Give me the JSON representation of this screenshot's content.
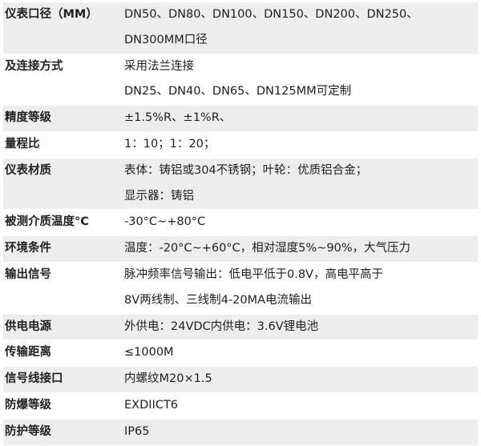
{
  "style": {
    "stripe_color": "#eeedee",
    "text_color": "#1e1e1e"
  },
  "specs": [
    {
      "label": "仪表口径（MM）",
      "lines": [
        "DN50、DN80、DN100、DN150、DN200、DN250、",
        "DN300MM口径"
      ]
    },
    {
      "label": "及连接方式",
      "lines": [
        "采用法兰连接",
        "DN25、DN40、DN65、DN125MM可定制"
      ]
    },
    {
      "label": "精度等级",
      "lines": [
        "±1.5%R、±1%R、"
      ]
    },
    {
      "label": "量程比",
      "lines": [
        "1：10；1：20；"
      ]
    },
    {
      "label": "仪表材质",
      "lines": [
        "表体：铸铝或304不锈钢；叶轮：优质铝合金；",
        "显示器：铸铝"
      ]
    },
    {
      "label": "被测介质温度°C",
      "lines": [
        "-30°C~+80°C"
      ]
    },
    {
      "label": "环境条件",
      "lines": [
        "温度：-20°C~+60°C，相对湿度5%~90%，大气压力"
      ]
    },
    {
      "label": "输出信号",
      "lines": [
        "脉冲频率信号输出：低电平低于0.8V，高电平高于",
        "8V两线制、三线制4-20MA电流输出"
      ]
    },
    {
      "label": "供电电源",
      "lines": [
        "外供电：24VDC内供电：3.6V锂电池"
      ]
    },
    {
      "label": "传输距离",
      "lines": [
        "≤1000M"
      ]
    },
    {
      "label": "信号线接口",
      "lines": [
        "内螺纹M20×1.5"
      ]
    },
    {
      "label": "防爆等级",
      "lines": [
        "EXDIICT6"
      ]
    },
    {
      "label": "防护等级",
      "lines": [
        "IP65"
      ]
    }
  ]
}
